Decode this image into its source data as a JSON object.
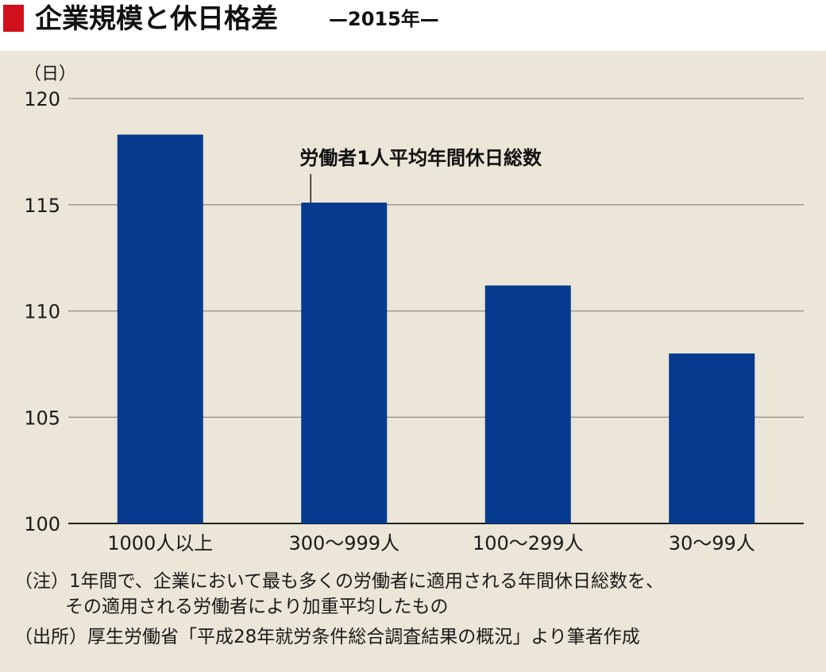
{
  "header": {
    "title": "企業規模と休日格差",
    "subtitle": "—2015年—"
  },
  "colors": {
    "accent": "#d0111b",
    "bar": "#063a8f",
    "background": "#ebe6d8"
  },
  "chart_data": {
    "type": "bar",
    "title": "企業規模と休日格差",
    "subtitle": "—2015年—",
    "y_unit": "（日）",
    "categories": [
      "1000人以上",
      "300〜999人",
      "100〜299人",
      "30〜99人"
    ],
    "series": [
      {
        "name": "労働者1人平均年間休日総数",
        "values": [
          118.3,
          115.1,
          111.2,
          108.0
        ]
      }
    ],
    "ylim": [
      100,
      120
    ],
    "yticks": [
      100,
      105,
      110,
      115,
      120
    ],
    "grid": true,
    "annotation": {
      "text": "労働者1人平均年間休日総数",
      "category_index": 1
    }
  },
  "notes": {
    "note_line1": "（注）1年間で、企業において最も多くの労働者に適用される年間休日総数を、",
    "note_line2": "その適用される労働者により加重平均したもの",
    "source": "（出所）厚生労働省「平成28年就労条件総合調査結果の概況」より筆者作成"
  }
}
